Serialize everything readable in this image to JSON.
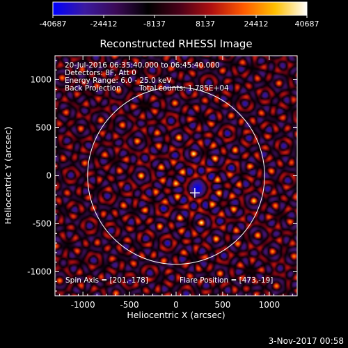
{
  "chart_data": {
    "type": "heatmap",
    "title": "Reconstructed RHESSI Image",
    "xlabel": "Heliocentric X (arcsec)",
    "ylabel": "Heliocentric Y (arcsec)",
    "xlim": [
      -1300,
      1300
    ],
    "ylim": [
      -1250,
      1250
    ],
    "x_ticks": [
      -1000,
      -500,
      0,
      500,
      1000
    ],
    "y_ticks": [
      -1000,
      -500,
      0,
      500,
      1000
    ],
    "colorbar": {
      "ticks": [
        "-40687",
        "-24412",
        "-8137",
        "8137",
        "24412",
        "40687"
      ],
      "min": -40687,
      "max": 40687,
      "colormap": [
        "#0000ff",
        "#3b1aa0",
        "#3a0a55",
        "#000000",
        "#4a0018",
        "#b01010",
        "#ff5a00",
        "#ffc000",
        "#ffffff"
      ]
    },
    "annotations": {
      "date_range": "20-Jul-2016 06:35:40.000 to 06:45:40.000",
      "detectors": "Detectors: 8F, Att 0",
      "energy_range": "Energy Range: 6.0 - 25.0 keV",
      "method": "Back Projection",
      "total_counts": "Total counts: 1.785E+04",
      "spin_axis": "Spin Axis = [201,-178]",
      "flare_position": "Flare Position = [473,-19]"
    },
    "solar_limb": {
      "center": [
        0,
        0
      ],
      "radius_arcsec": 950
    },
    "spin_axis_point": [
      201,
      -178
    ],
    "grid": false
  },
  "footer": {
    "timestamp": "3-Nov-2017 00:58"
  }
}
